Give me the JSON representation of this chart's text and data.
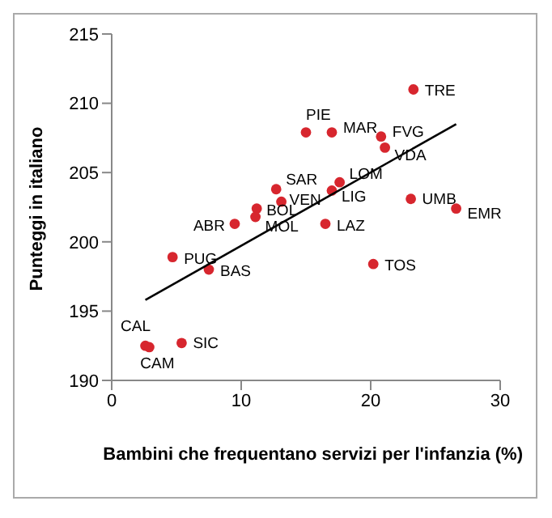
{
  "chart_data": {
    "type": "scatter",
    "xlabel": "Bambini che frequentano servizi per l'infanzia (%)",
    "ylabel": "Punteggi in italiano",
    "xlim": [
      0,
      30
    ],
    "xticks": [
      0,
      10,
      20,
      30
    ],
    "ylim": [
      190,
      215
    ],
    "yticks": [
      190,
      195,
      200,
      205,
      210,
      215
    ],
    "grid": false,
    "legend": false,
    "marker": "circle",
    "series": [
      {
        "type": "scatter",
        "color": "#d7262e",
        "x": [
          23.3,
          15.0,
          17.0,
          20.8,
          21.1,
          23.1,
          26.6,
          12.7,
          17.0,
          17.6,
          13.1,
          11.2,
          11.1,
          9.5,
          16.5,
          4.7,
          7.5,
          20.2,
          2.6,
          2.9,
          5.4
        ],
        "values": [
          211.0,
          207.9,
          207.9,
          207.6,
          206.8,
          203.1,
          202.4,
          203.8,
          203.7,
          204.3,
          202.9,
          202.4,
          201.8,
          201.3,
          201.3,
          198.9,
          198.0,
          198.4,
          192.5,
          192.4,
          192.7
        ],
        "value_labels": [
          "TRE",
          "PIE",
          "MAR",
          "FVG",
          "VDA",
          "UMB",
          "EMR",
          "SAR",
          "LIG",
          "LOM",
          "VEN",
          "BOL",
          "MOL",
          "ABR",
          "LAZ",
          "PUG",
          "BAS",
          "TOS",
          "CAL",
          "CAM",
          "SIC"
        ]
      },
      {
        "type": "line",
        "color": "#000000",
        "marker": "none",
        "x": [
          2.6,
          26.6
        ],
        "values": [
          195.8,
          208.5
        ]
      }
    ]
  }
}
